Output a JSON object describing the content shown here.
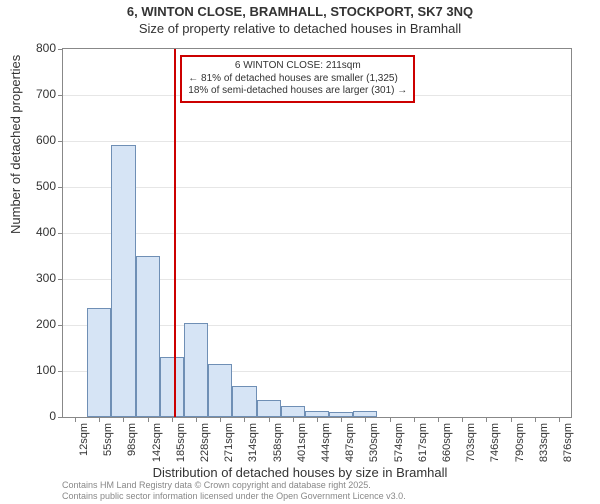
{
  "title": "6, WINTON CLOSE, BRAMHALL, STOCKPORT, SK7 3NQ",
  "subtitle": "Size of property relative to detached houses in Bramhall",
  "chart": {
    "type": "histogram",
    "ylabel": "Number of detached properties",
    "xlabel": "Distribution of detached houses by size in Bramhall",
    "ylim": [
      0,
      800
    ],
    "ytick_step": 100,
    "grid_color": "#e6e6e6",
    "background_color": "#ffffff",
    "bar_fill": "#d6e4f5",
    "bar_border": "#6f8fb5",
    "label_fontsize": 13,
    "tick_fontsize": 11,
    "categories": [
      "12sqm",
      "55sqm",
      "98sqm",
      "142sqm",
      "185sqm",
      "228sqm",
      "271sqm",
      "314sqm",
      "358sqm",
      "401sqm",
      "444sqm",
      "487sqm",
      "530sqm",
      "574sqm",
      "617sqm",
      "660sqm",
      "703sqm",
      "746sqm",
      "790sqm",
      "833sqm",
      "876sqm"
    ],
    "values": [
      0,
      238,
      592,
      350,
      130,
      205,
      115,
      68,
      38,
      24,
      14,
      10,
      12,
      0,
      0,
      0,
      0,
      0,
      0,
      0,
      0
    ],
    "marker": {
      "label": "6 WINTON CLOSE: 211sqm",
      "position_index": 4.6,
      "color": "#cc0000",
      "lines": [
        "← 81% of detached houses are smaller (1,325)",
        "18% of semi-detached houses are larger (301) →"
      ]
    }
  },
  "footer": {
    "line1": "Contains HM Land Registry data © Crown copyright and database right 2025.",
    "line2": "Contains public sector information licensed under the Open Government Licence v3.0."
  }
}
